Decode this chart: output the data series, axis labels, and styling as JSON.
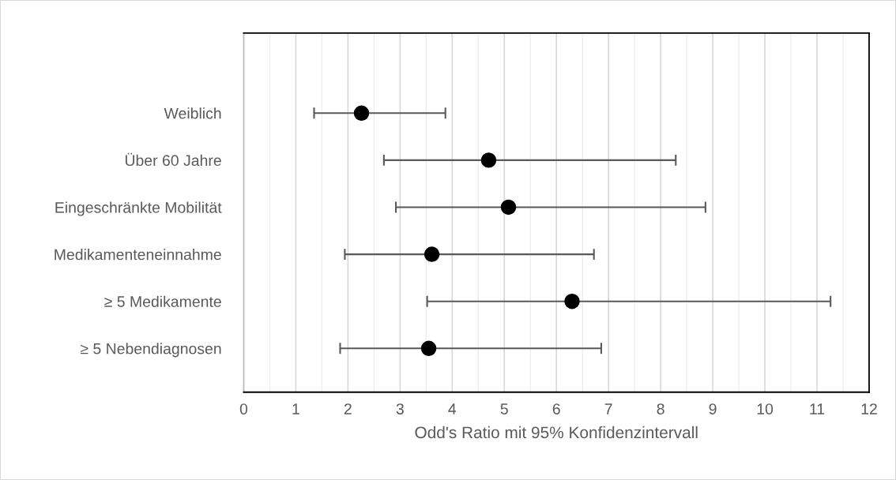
{
  "chart_data": {
    "type": "scatter",
    "orientation": "horizontal",
    "xlabel": "Odd's Ratio mit 95% Konfidenzintervall",
    "categories": [
      "Weiblich",
      "Über 60 Jahre",
      "Eingeschränkte Mobilität",
      "Medikamenteneinnahme",
      "≥ 5 Medikamente",
      "≥ 5 Nebendiagnosen"
    ],
    "series": [
      {
        "color": "#000000",
        "values": [
          2.26,
          4.7,
          5.08,
          3.61,
          6.3,
          3.55
        ],
        "errors": [
          [
            1.35,
            3.87
          ],
          [
            2.69,
            8.29
          ],
          [
            2.92,
            8.86
          ],
          [
            1.94,
            6.72
          ],
          [
            3.52,
            11.26
          ],
          [
            1.85,
            6.86
          ]
        ]
      }
    ],
    "xlim": [
      0,
      12
    ],
    "xticks": [
      0,
      1,
      2,
      3,
      4,
      5,
      6,
      7,
      8,
      9,
      10,
      11,
      12
    ],
    "grid": "x",
    "marker": "circle"
  }
}
